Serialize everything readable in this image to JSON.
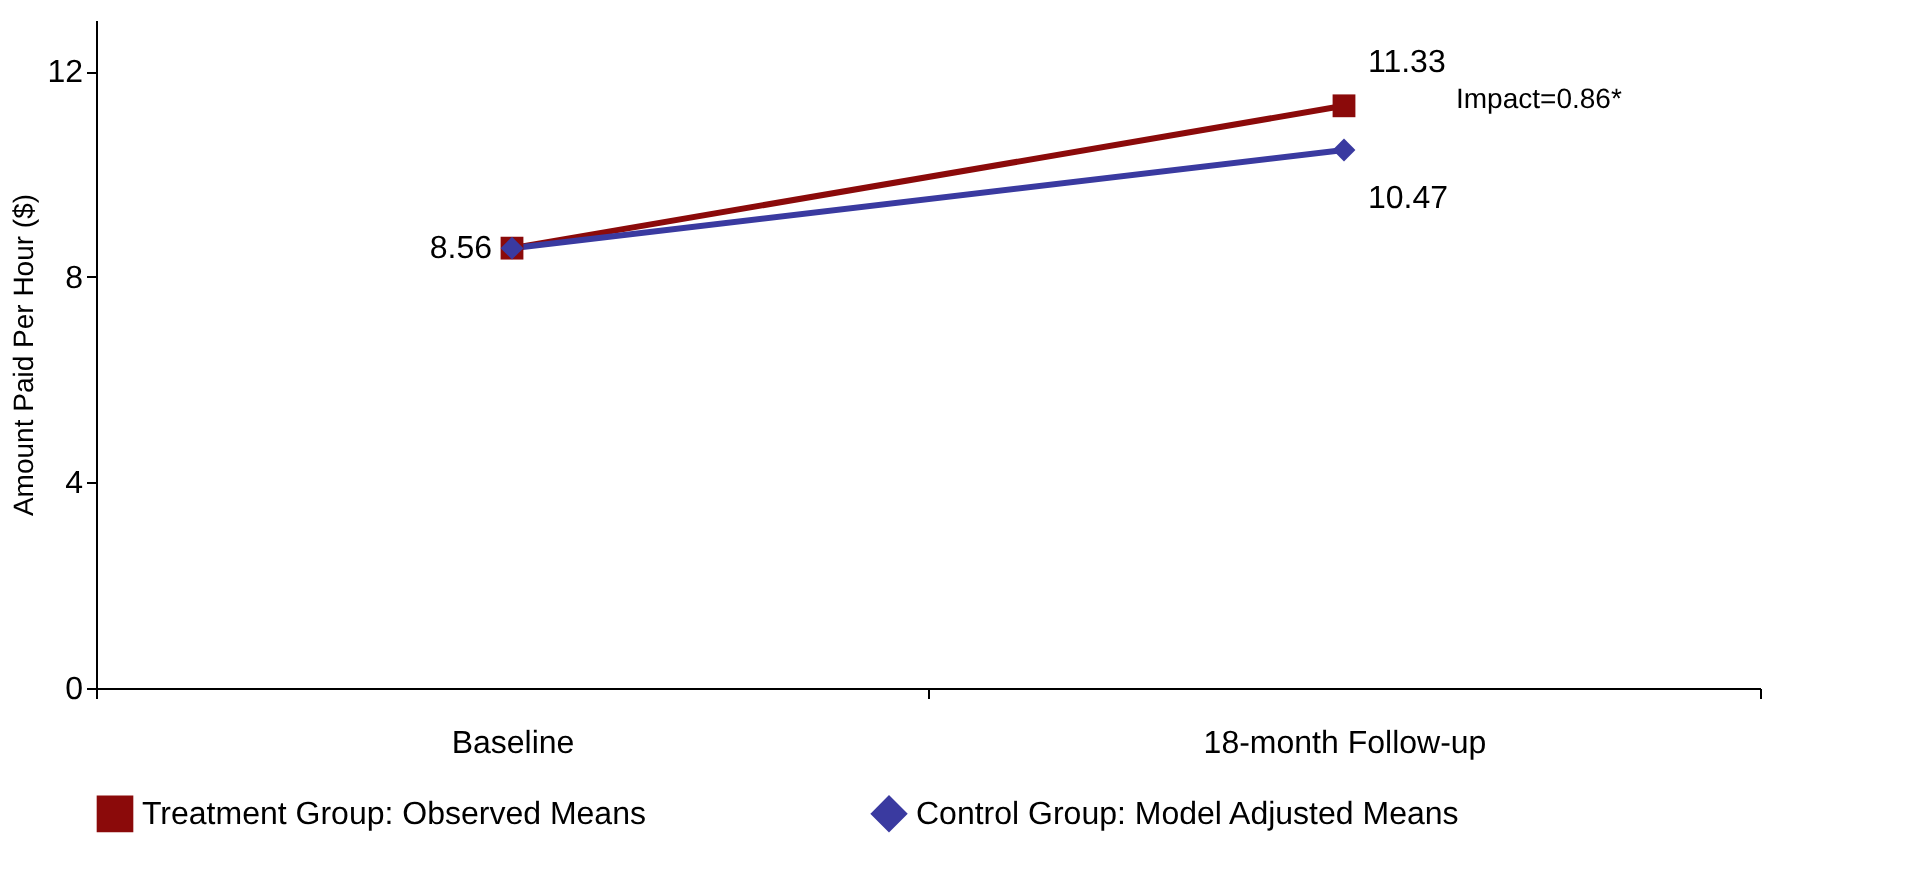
{
  "chart_data": {
    "type": "line",
    "ylabel": "Amount Paid Per Hour ($)",
    "categories": [
      "Baseline",
      "18-month Follow-up"
    ],
    "series": [
      {
        "name": "Treatment Group: Observed Means",
        "color": "#8b0a0a",
        "marker": "square",
        "values": [
          8.56,
          11.33
        ],
        "value_labels": [
          "8.56",
          "11.33"
        ]
      },
      {
        "name": "Control Group: Model Adjusted Means",
        "color": "#3a3aa0",
        "marker": "diamond",
        "values": [
          8.56,
          10.47
        ],
        "value_labels": [
          null,
          "10.47"
        ]
      }
    ],
    "annotations": [
      "Impact=0.86*"
    ],
    "ylim": [
      0,
      13
    ],
    "yticks": [
      0,
      4,
      8,
      12
    ],
    "grid": false,
    "legend": "bottom"
  }
}
